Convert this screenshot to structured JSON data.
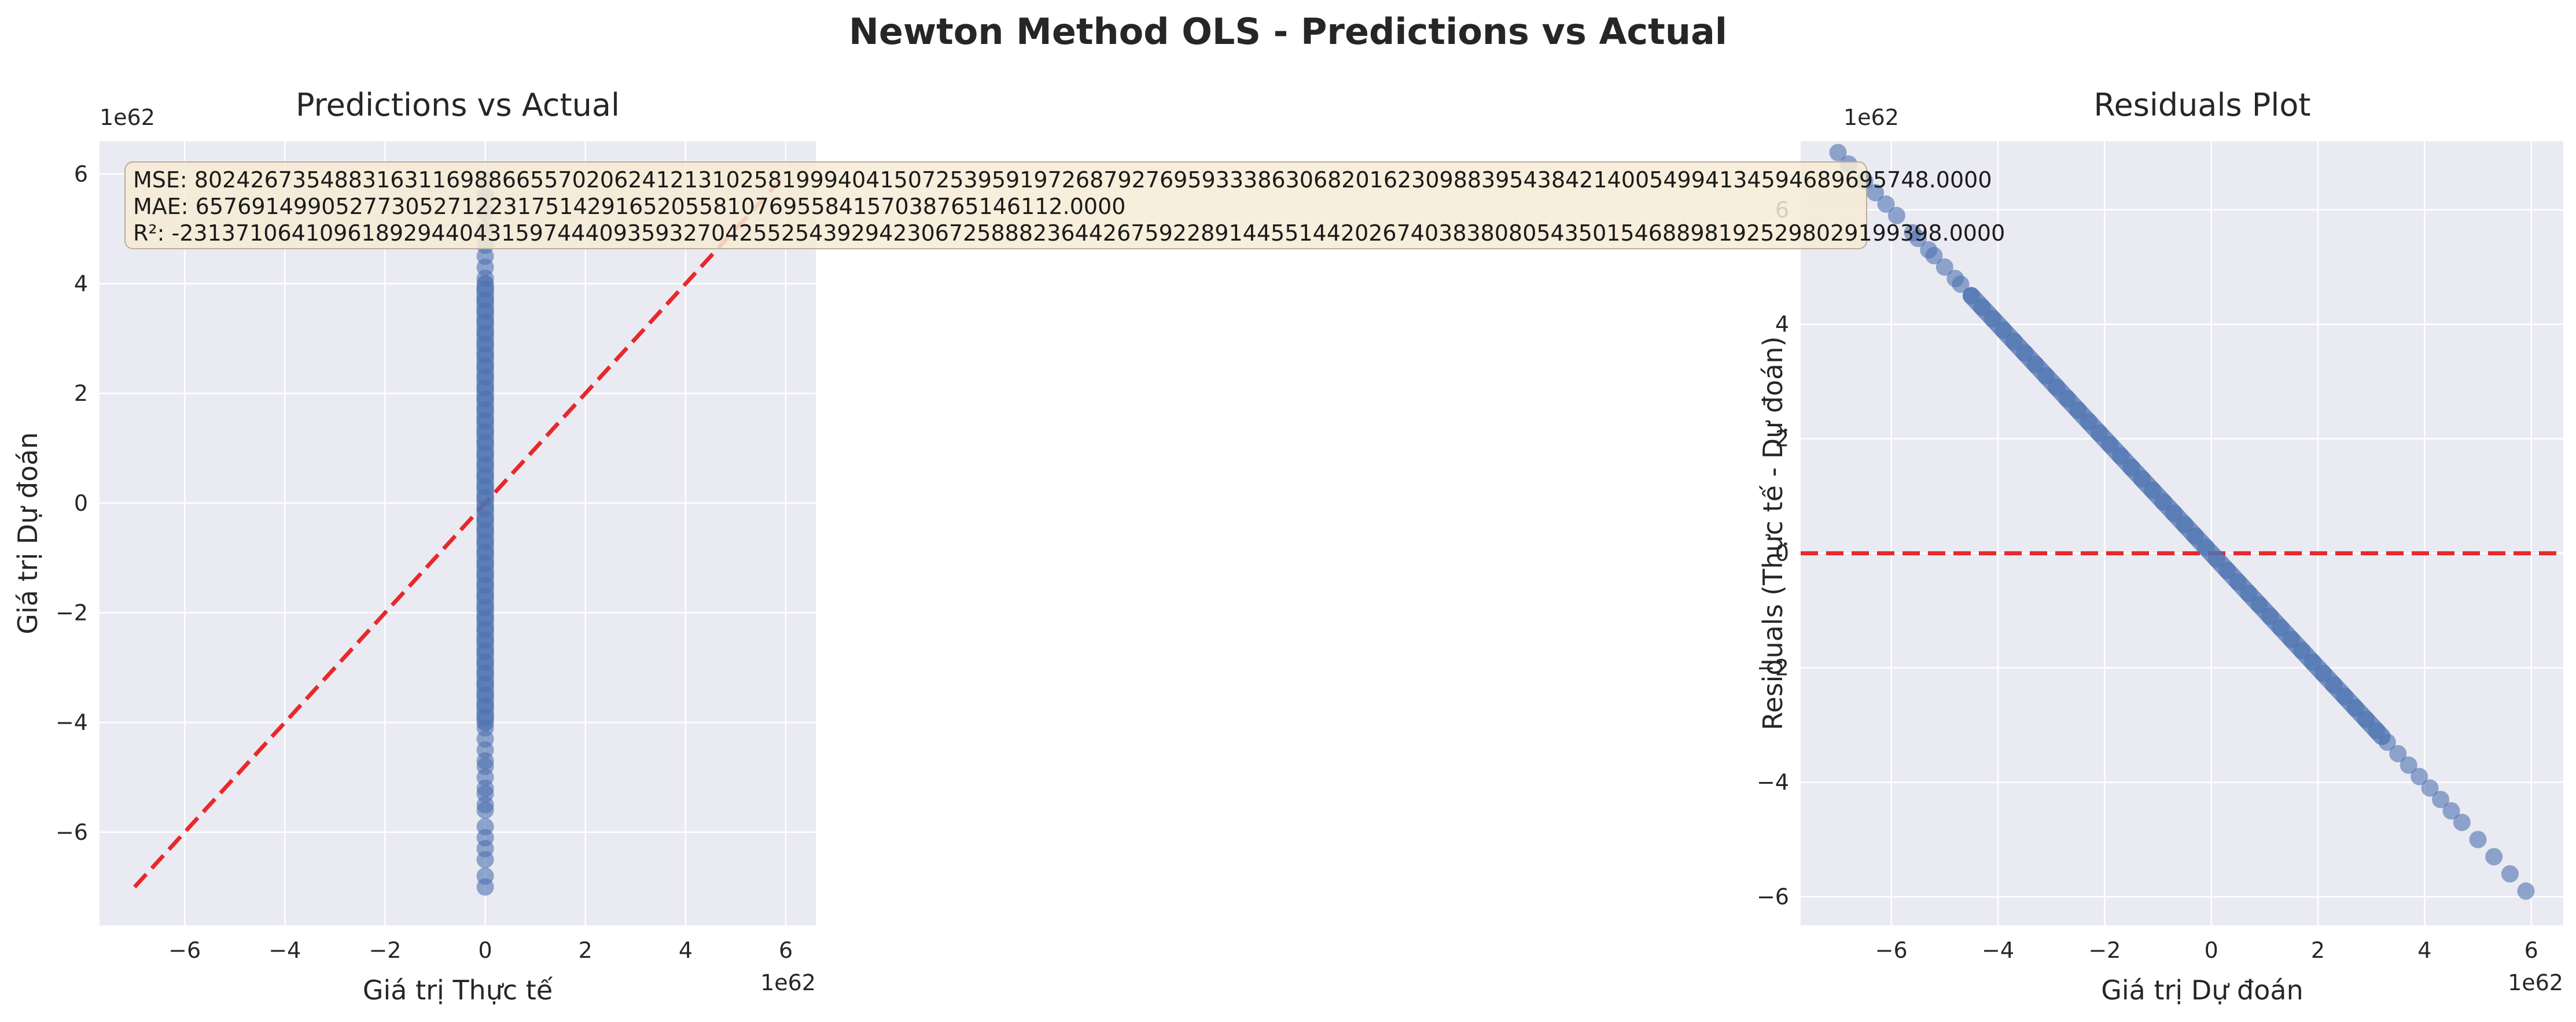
{
  "figure_title": "Newton Method OLS - Predictions vs Actual",
  "colors": {
    "points": "#4c72b0",
    "reference_line": "#e8282b",
    "axes_bg": "#eaeaf2",
    "grid": "#ffffff",
    "stats_box": "#f6ebd5"
  },
  "chart_data": [
    {
      "type": "scatter",
      "title": "Predictions vs Actual",
      "xlabel": "Giá trị Thực tế",
      "ylabel": "Giá trị Dự đoán",
      "x_offset_label": "1e62",
      "y_offset_label": "1e62",
      "xlim": [
        -7.7,
        6.6
      ],
      "ylim": [
        -7.7,
        6.6
      ],
      "xticks": [
        -6,
        -4,
        -2,
        0,
        2,
        4,
        6
      ],
      "yticks": [
        -6,
        -4,
        -2,
        0,
        2,
        4,
        6
      ],
      "xtick_labels": [
        "−6",
        "−4",
        "−2",
        "0",
        "2",
        "4",
        "6"
      ],
      "ytick_labels": [
        "−6",
        "−4",
        "−2",
        "0",
        "2",
        "4",
        "6"
      ],
      "grid": true,
      "reference_line": {
        "style": "dashed",
        "x": [
          -7.0,
          5.9
        ],
        "y": [
          -7.0,
          5.9
        ]
      },
      "points": {
        "x": 0,
        "y": [
          -7.0,
          -6.8,
          -6.5,
          -6.3,
          -6.1,
          -5.9,
          -5.6,
          -5.5,
          -5.3,
          -5.2,
          -5.0,
          -4.8,
          -4.7,
          -4.5,
          -4.3,
          -4.1,
          -3.9,
          -3.7,
          -3.5,
          -3.3,
          -3.1,
          -2.9,
          -2.7,
          -2.5,
          -2.3,
          -2.1,
          -1.9,
          -1.7,
          -1.5,
          -1.3,
          -1.1,
          -0.9,
          -0.7,
          -0.5,
          -0.3,
          -0.1,
          0.1,
          0.3,
          0.5,
          0.7,
          0.9,
          1.1,
          1.3,
          1.5,
          1.7,
          1.9,
          2.1,
          2.3,
          2.5,
          2.7,
          2.9,
          3.1,
          3.3,
          3.5,
          3.7,
          3.9,
          4.1,
          4.3,
          4.5,
          4.7,
          5.0,
          5.3,
          5.6,
          5.9
        ]
      },
      "annotation": {
        "mse": "MSE: 8024267354883163116988665570206241213102581999404150725395919726879276959333863068201623098839543842140054994134594689695748.0000",
        "mae": "MAE: 65769149905277305271223175142916520558107695584157038765146112.0000",
        "r2": "R²: -231371064109618929440431597444093593270425525439294230672588823644267592289144551442026740383808054350154688981925298029199398.0000"
      }
    },
    {
      "type": "scatter",
      "title": "Residuals Plot",
      "xlabel": "Giá trị Dự đoán",
      "ylabel": "Residuals (Thực tế - Dự đoán)",
      "x_offset_label": "1e62",
      "y_offset_label": "1e62",
      "xlim": [
        -7.7,
        6.6
      ],
      "ylim": [
        -6.5,
        7.2
      ],
      "xticks": [
        -6,
        -4,
        -2,
        0,
        2,
        4,
        6
      ],
      "yticks": [
        -6,
        -4,
        -2,
        0,
        2,
        4,
        6
      ],
      "xtick_labels": [
        "−6",
        "−4",
        "−2",
        "0",
        "2",
        "4",
        "6"
      ],
      "ytick_labels": [
        "−6",
        "−4",
        "−2",
        "0",
        "2",
        "4",
        "6"
      ],
      "grid": true,
      "reference_line": {
        "style": "dashed",
        "y": 0
      },
      "points": {
        "x": [
          -7.0,
          -6.8,
          -6.5,
          -6.3,
          -6.1,
          -5.9,
          -5.6,
          -5.5,
          -5.3,
          -5.2,
          -5.0,
          -4.8,
          -4.7,
          -4.5,
          -4.3,
          -4.1,
          -3.9,
          -3.7,
          -3.5,
          -3.3,
          -3.1,
          -2.9,
          -2.7,
          -2.5,
          -2.3,
          -2.1,
          -1.9,
          -1.7,
          -1.5,
          -1.3,
          -1.1,
          -0.9,
          -0.7,
          -0.5,
          -0.3,
          -0.1,
          0.1,
          0.3,
          0.5,
          0.7,
          0.9,
          1.1,
          1.3,
          1.5,
          1.7,
          1.9,
          2.1,
          2.3,
          2.5,
          2.7,
          2.9,
          3.1,
          3.3,
          3.5,
          3.7,
          3.9,
          4.1,
          4.3,
          4.5,
          4.7,
          5.0,
          5.3,
          5.6,
          5.9
        ],
        "y": [
          7.0,
          6.8,
          6.5,
          6.3,
          6.1,
          5.9,
          5.6,
          5.5,
          5.3,
          5.2,
          5.0,
          4.8,
          4.7,
          4.5,
          4.3,
          4.1,
          3.9,
          3.7,
          3.5,
          3.3,
          3.1,
          2.9,
          2.7,
          2.5,
          2.3,
          2.1,
          1.9,
          1.7,
          1.5,
          1.3,
          1.1,
          0.9,
          0.7,
          0.5,
          0.3,
          0.1,
          -0.1,
          -0.3,
          -0.5,
          -0.7,
          -0.9,
          -1.1,
          -1.3,
          -1.5,
          -1.7,
          -1.9,
          -2.1,
          -2.3,
          -2.5,
          -2.7,
          -2.9,
          -3.1,
          -3.3,
          -3.5,
          -3.7,
          -3.9,
          -4.1,
          -4.3,
          -4.5,
          -4.7,
          -5.0,
          -5.3,
          -5.6,
          -5.9
        ]
      }
    }
  ]
}
